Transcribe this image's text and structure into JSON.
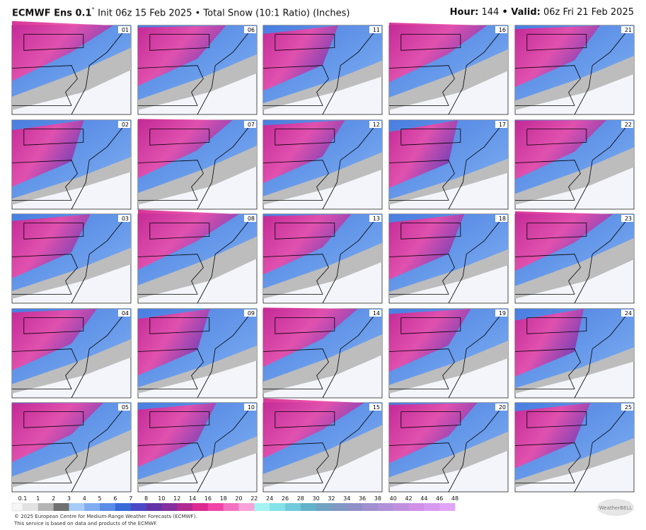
{
  "header": {
    "model": "ECMWF Ens 0.1",
    "degree": "°",
    "title": "Init 06z 15 Feb 2025 • Total Snow (10:1 Ratio) (Inches)",
    "hour_label": "Hour:",
    "hour": "144",
    "valid_label": "• Valid:",
    "valid": "06z Fri 21 Feb 2025"
  },
  "panels": [
    [
      "01",
      "06",
      "11",
      "16",
      "21"
    ],
    [
      "02",
      "07",
      "12",
      "17",
      "22"
    ],
    [
      "03",
      "08",
      "13",
      "18",
      "23"
    ],
    [
      "04",
      "09",
      "14",
      "19",
      "24"
    ],
    [
      "05",
      "10",
      "15",
      "20",
      "25"
    ]
  ],
  "colorbar": {
    "labels": [
      0.1,
      1,
      2,
      3,
      4,
      5,
      6,
      7,
      8,
      10,
      12,
      14,
      16,
      18,
      20,
      22,
      24,
      26,
      28,
      30,
      32,
      34,
      36,
      38,
      40,
      42,
      44,
      46,
      48
    ],
    "colors": [
      "#e2e2e2",
      "#b4b4b4",
      "#707070",
      "#a8ccf8",
      "#80acf0",
      "#5a8ce8",
      "#386ad8",
      "#4a48c6",
      "#6432a8",
      "#84309e",
      "#b02a92",
      "#dc2a90",
      "#f044a8",
      "#f272c2",
      "#f8a2d8",
      "#a4f2f2",
      "#84e2ea",
      "#70cadc",
      "#62b2ca",
      "#70a2c2",
      "#8098c2",
      "#9090c8",
      "#a090d0",
      "#b090d8",
      "#c090e0",
      "#d090e8",
      "#d89af0",
      "#e2a4f8"
    ]
  },
  "footer": {
    "line1": "© 2025 European Centre for Medium-Range Weather Forecasts (ECMWF).",
    "line2": "This service is based on data and products of the ECMWF.",
    "logo": "WeatherBELL"
  }
}
